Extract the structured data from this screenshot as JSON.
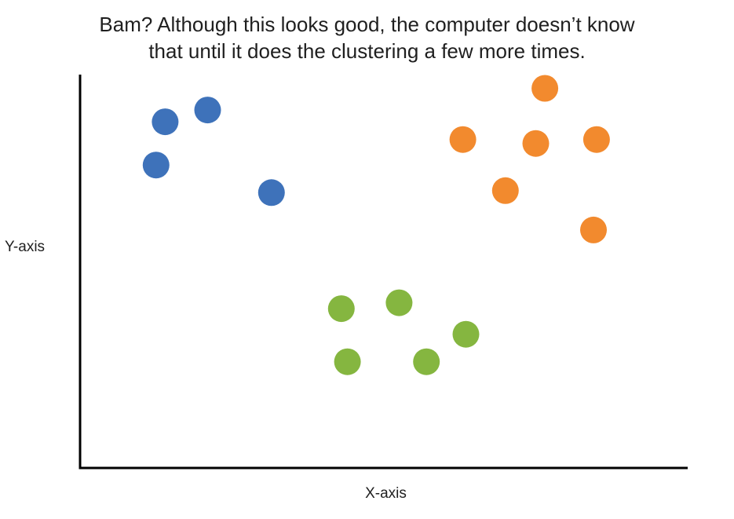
{
  "chart_data": {
    "type": "scatter",
    "title": "Bam? Although this looks good, the computer doesn’t know\nthat until it does the clustering a few more times.",
    "xlabel": "X-axis",
    "ylabel": "Y-axis",
    "xlim": [
      0,
      100
    ],
    "ylim": [
      0,
      100
    ],
    "grid": false,
    "series": [
      {
        "color": "#3E72BA",
        "points": [
          [
            14,
            88
          ],
          [
            21,
            91
          ],
          [
            12.5,
            77
          ],
          [
            31.5,
            70
          ]
        ]
      },
      {
        "color": "#F28A2E",
        "points": [
          [
            76.5,
            96.5
          ],
          [
            63,
            83.5
          ],
          [
            75,
            82.5
          ],
          [
            85,
            83.5
          ],
          [
            70,
            70.5
          ],
          [
            84.5,
            60.5
          ]
        ]
      },
      {
        "color": "#85B640",
        "points": [
          [
            43,
            40.5
          ],
          [
            52.5,
            42
          ],
          [
            63.5,
            34
          ],
          [
            44,
            27
          ],
          [
            57,
            27
          ]
        ]
      }
    ]
  }
}
